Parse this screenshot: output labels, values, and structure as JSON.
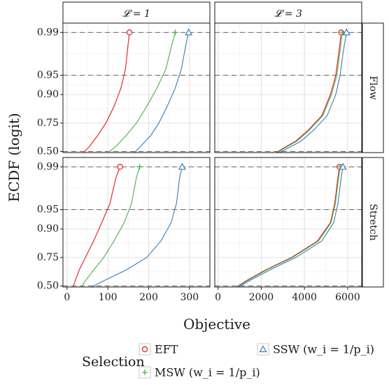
{
  "chart_data": {
    "type": "line",
    "ylabel": "ECDF (logit)",
    "xlabel": "Objective",
    "y_scale": "logit",
    "y_ticks": [
      0.5,
      0.75,
      0.9,
      0.95,
      0.99
    ],
    "y_tick_labels": [
      "0.50",
      "0.75",
      "0.90",
      "0.95",
      "0.99"
    ],
    "y_range": [
      0.49,
      0.993
    ],
    "dashed_reference_lines": [
      0.5,
      0.95,
      0.99
    ],
    "grid": true,
    "columns": [
      {
        "strip_label": "𝓛 = 1",
        "xlim": [
          -10,
          350
        ],
        "x_ticks": [
          0,
          100,
          200,
          300
        ],
        "x_tick_labels": [
          "0",
          "100",
          "200",
          "300"
        ]
      },
      {
        "strip_label": "𝓛 = 3",
        "xlim": [
          -150,
          6650
        ],
        "x_ticks": [
          0,
          2000,
          4000,
          6000
        ],
        "x_tick_labels": [
          "0",
          "2000",
          "4000",
          "6000"
        ]
      }
    ],
    "rows": [
      {
        "strip_label": "Flow"
      },
      {
        "strip_label": "Stretch"
      }
    ],
    "legend": {
      "title": "Selection",
      "placement": "bottom",
      "entries": [
        {
          "label": "EFT",
          "color": "#e41a1c",
          "marker": "circle"
        },
        {
          "label": "MSW (w_i = 1/p_i)",
          "color": "#4daf4a",
          "marker": "plus"
        },
        {
          "label": "SSW (w_i = 1/p_i)",
          "color": "#377eb8",
          "marker": "triangle"
        }
      ]
    },
    "panels": [
      {
        "row": 0,
        "col": 0,
        "series": [
          {
            "name": "EFT",
            "x": [
              40,
              55,
              75,
              95,
              115,
              132,
              143,
              150,
              153
            ],
            "y": [
              0.49,
              0.55,
              0.65,
              0.75,
              0.85,
              0.92,
              0.96,
              0.985,
              0.99
            ]
          },
          {
            "name": "MSW (w_i = 1/p_i)",
            "x": [
              100,
              120,
              145,
              170,
              195,
              220,
              242,
              258,
              265
            ],
            "y": [
              0.49,
              0.55,
              0.65,
              0.75,
              0.85,
              0.92,
              0.96,
              0.985,
              0.99
            ]
          },
          {
            "name": "SSW (w_i = 1/p_i)",
            "x": [
              165,
              180,
              205,
              225,
              245,
              265,
              280,
              292,
              298
            ],
            "y": [
              0.49,
              0.55,
              0.65,
              0.75,
              0.85,
              0.92,
              0.96,
              0.985,
              0.99
            ]
          }
        ]
      },
      {
        "row": 0,
        "col": 1,
        "series": [
          {
            "name": "EFT",
            "x": [
              2700,
              3000,
              3600,
              4200,
              4800,
              5200,
              5450,
              5600,
              5700
            ],
            "y": [
              0.49,
              0.53,
              0.6,
              0.7,
              0.8,
              0.9,
              0.95,
              0.98,
              0.99
            ]
          },
          {
            "name": "MSW (w_i = 1/p_i)",
            "x": [
              2750,
              3050,
              3650,
              4250,
              4850,
              5250,
              5500,
              5650,
              5750
            ],
            "y": [
              0.49,
              0.53,
              0.6,
              0.7,
              0.8,
              0.9,
              0.95,
              0.98,
              0.99
            ]
          },
          {
            "name": "SSW (w_i = 1/p_i)",
            "x": [
              2850,
              3200,
              3850,
              4450,
              5050,
              5450,
              5650,
              5800,
              5950
            ],
            "y": [
              0.49,
              0.53,
              0.6,
              0.7,
              0.8,
              0.9,
              0.95,
              0.98,
              0.99
            ]
          }
        ]
      },
      {
        "row": 1,
        "col": 0,
        "series": [
          {
            "name": "EFT",
            "x": [
              15,
              20,
              30,
              45,
              65,
              85,
              105,
              120,
              130
            ],
            "y": [
              0.49,
              0.55,
              0.65,
              0.75,
              0.85,
              0.92,
              0.96,
              0.985,
              0.99
            ]
          },
          {
            "name": "MSW (w_i = 1/p_i)",
            "x": [
              35,
              45,
              65,
              90,
              115,
              140,
              158,
              170,
              178
            ],
            "y": [
              0.49,
              0.55,
              0.65,
              0.75,
              0.85,
              0.92,
              0.96,
              0.985,
              0.99
            ]
          },
          {
            "name": "SSW (w_i = 1/p_i)",
            "x": [
              60,
              90,
              145,
              195,
              230,
              255,
              268,
              276,
              282
            ],
            "y": [
              0.49,
              0.55,
              0.65,
              0.75,
              0.85,
              0.92,
              0.96,
              0.985,
              0.99
            ]
          }
        ]
      },
      {
        "row": 1,
        "col": 1,
        "series": [
          {
            "name": "EFT",
            "x": [
              850,
              1300,
              2200,
              3400,
              4600,
              5200,
              5400,
              5550,
              5620
            ],
            "y": [
              0.49,
              0.55,
              0.65,
              0.75,
              0.85,
              0.92,
              0.96,
              0.985,
              0.99
            ]
          },
          {
            "name": "MSW (w_i = 1/p_i)",
            "x": [
              880,
              1350,
              2250,
              3450,
              4650,
              5230,
              5430,
              5580,
              5650
            ],
            "y": [
              0.49,
              0.55,
              0.65,
              0.75,
              0.85,
              0.92,
              0.96,
              0.985,
              0.99
            ]
          },
          {
            "name": "SSW (w_i = 1/p_i)",
            "x": [
              950,
              1450,
              2400,
              3600,
              4800,
              5350,
              5550,
              5700,
              5780
            ],
            "y": [
              0.49,
              0.55,
              0.65,
              0.75,
              0.85,
              0.92,
              0.96,
              0.985,
              0.99
            ]
          }
        ]
      }
    ]
  }
}
